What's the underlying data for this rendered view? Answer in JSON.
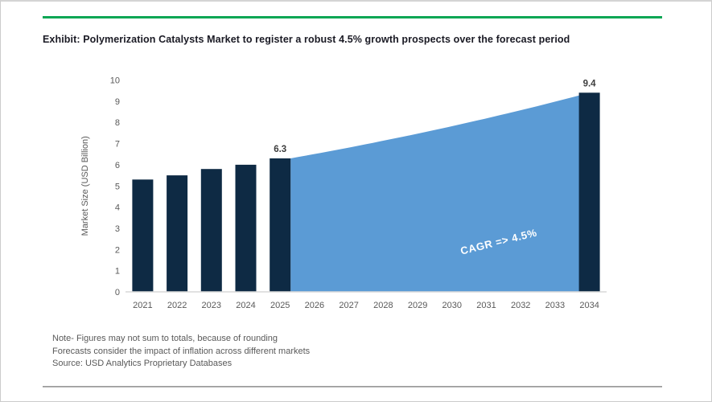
{
  "header": {
    "title": "Exhibit: Polymerization Catalysts Market to register a robust 4.5% growth prospects over the forecast period"
  },
  "footer": {
    "notes": [
      "Note- Figures may not sum to totals, because of rounding",
      "Forecasts consider the impact of inflation across different markets",
      "Source: USD Analytics Proprietary Databases"
    ]
  },
  "theme": {
    "accent_rule_color": "#0aa654",
    "bottom_rule_color": "#999999",
    "border_color": "#cccccc",
    "title_color": "#1a1a24",
    "background": "#ffffff"
  },
  "chart_data": {
    "type": "bar",
    "title": "",
    "xlabel": "",
    "ylabel": "Market Size (USD Billion)",
    "ylim": [
      0,
      10
    ],
    "ytick_step": 1,
    "grid": false,
    "legend": "none",
    "categories": [
      "2021",
      "2022",
      "2023",
      "2024",
      "2025",
      "2026",
      "2027",
      "2028",
      "2029",
      "2030",
      "2031",
      "2032",
      "2033",
      "2034"
    ],
    "series": [
      {
        "name": "Market Size (USD Billion)",
        "values": [
          5.3,
          5.5,
          5.8,
          6.0,
          6.3,
          null,
          null,
          null,
          null,
          null,
          null,
          null,
          null,
          9.4
        ]
      }
    ],
    "area_forecast": {
      "from_year": "2025",
      "to_year": "2034",
      "from_value": 6.3,
      "to_value": 9.4,
      "cagr_pct": 4.5,
      "shape": "exponential"
    },
    "data_labels": [
      {
        "category": "2025",
        "text": "6.3"
      },
      {
        "category": "2034",
        "text": "9.4"
      }
    ],
    "cagr_label": "CAGR => 4.5%",
    "colors": {
      "bar": "#0e2a44",
      "area": "#5b9bd5",
      "axis": "#d9d9d9",
      "tick_text": "#595959",
      "value_label": "#3d3d3d",
      "cagr_text": "#ffffff"
    }
  }
}
